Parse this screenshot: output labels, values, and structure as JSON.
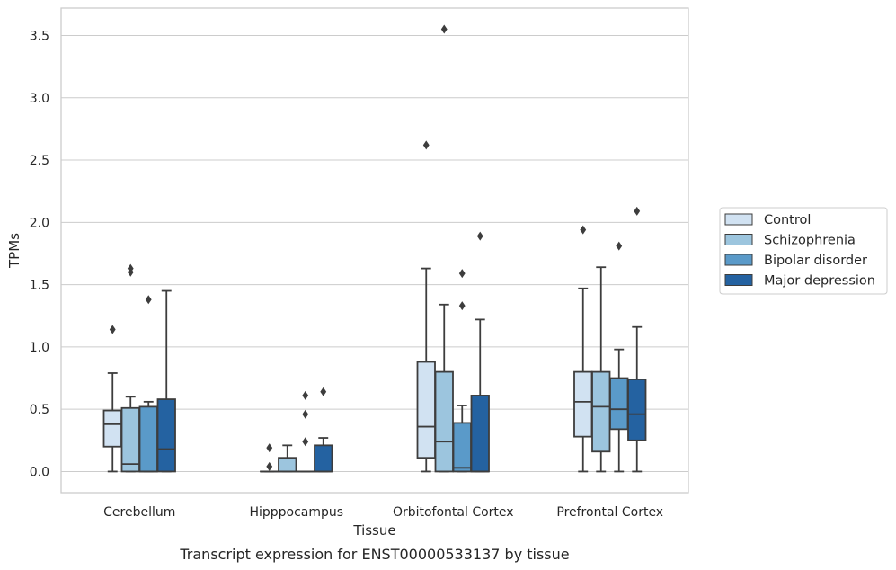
{
  "chart_data": {
    "type": "box",
    "xlabel": "Tissue",
    "ylabel": "TPMs",
    "caption": "Transcript expression for ENST00000533137 by tissue",
    "ylim": [
      -0.17,
      3.72
    ],
    "yticks": [
      0.0,
      0.5,
      1.0,
      1.5,
      2.0,
      2.5,
      3.0,
      3.5
    ],
    "ytick_labels": [
      "0.0",
      "0.5",
      "1.0",
      "1.5",
      "2.0",
      "2.5",
      "3.0",
      "3.5"
    ],
    "grid": "horizontal",
    "legend_position": "right",
    "categories": [
      "Cerebellum",
      "Hipppocampus",
      "Orbitofontal Cortex",
      "Prefrontal Cortex"
    ],
    "series": [
      {
        "name": "Control",
        "color": "#d1e2f2",
        "boxes": [
          {
            "whislo": 0.0,
            "q1": 0.2,
            "med": 0.38,
            "q3": 0.49,
            "whishi": 0.79,
            "fliers": [
              1.14
            ]
          },
          {
            "whislo": 0.0,
            "q1": 0.0,
            "med": 0.0,
            "q3": 0.0,
            "whishi": 0.0,
            "fliers": [
              0.04,
              0.19
            ]
          },
          {
            "whislo": 0.0,
            "q1": 0.11,
            "med": 0.36,
            "q3": 0.88,
            "whishi": 1.63,
            "fliers": [
              2.62
            ]
          },
          {
            "whislo": 0.0,
            "q1": 0.28,
            "med": 0.56,
            "q3": 0.8,
            "whishi": 1.47,
            "fliers": [
              1.94
            ]
          }
        ]
      },
      {
        "name": "Schizophrenia",
        "color": "#9cc5de",
        "boxes": [
          {
            "whislo": 0.0,
            "q1": 0.0,
            "med": 0.06,
            "q3": 0.51,
            "whishi": 0.6,
            "fliers": [
              1.6,
              1.63
            ]
          },
          {
            "whislo": 0.0,
            "q1": 0.0,
            "med": 0.0,
            "q3": 0.11,
            "whishi": 0.21,
            "fliers": []
          },
          {
            "whislo": 0.0,
            "q1": 0.0,
            "med": 0.24,
            "q3": 0.8,
            "whishi": 1.34,
            "fliers": [
              3.55
            ]
          },
          {
            "whislo": 0.0,
            "q1": 0.16,
            "med": 0.52,
            "q3": 0.8,
            "whishi": 1.64,
            "fliers": []
          }
        ]
      },
      {
        "name": "Bipolar disorder",
        "color": "#5a9ac9",
        "boxes": [
          {
            "whislo": 0.0,
            "q1": 0.0,
            "med": 0.0,
            "q3": 0.52,
            "whishi": 0.56,
            "fliers": [
              1.38
            ]
          },
          {
            "whislo": 0.0,
            "q1": 0.0,
            "med": 0.0,
            "q3": 0.0,
            "whishi": 0.0,
            "fliers": [
              0.24,
              0.46,
              0.61
            ]
          },
          {
            "whislo": 0.0,
            "q1": 0.0,
            "med": 0.03,
            "q3": 0.39,
            "whishi": 0.53,
            "fliers": [
              1.33,
              1.59
            ]
          },
          {
            "whislo": 0.0,
            "q1": 0.34,
            "med": 0.5,
            "q3": 0.75,
            "whishi": 0.98,
            "fliers": [
              1.81
            ]
          }
        ]
      },
      {
        "name": "Major depression",
        "color": "#2462a1",
        "boxes": [
          {
            "whislo": 0.0,
            "q1": 0.0,
            "med": 0.18,
            "q3": 0.58,
            "whishi": 1.45,
            "fliers": []
          },
          {
            "whislo": 0.0,
            "q1": 0.0,
            "med": 0.0,
            "q3": 0.21,
            "whishi": 0.27,
            "fliers": [
              0.64
            ]
          },
          {
            "whislo": 0.0,
            "q1": 0.0,
            "med": 0.0,
            "q3": 0.61,
            "whishi": 1.22,
            "fliers": [
              1.89
            ]
          },
          {
            "whislo": 0.0,
            "q1": 0.25,
            "med": 0.46,
            "q3": 0.74,
            "whishi": 1.16,
            "fliers": [
              2.09
            ]
          }
        ]
      }
    ]
  }
}
